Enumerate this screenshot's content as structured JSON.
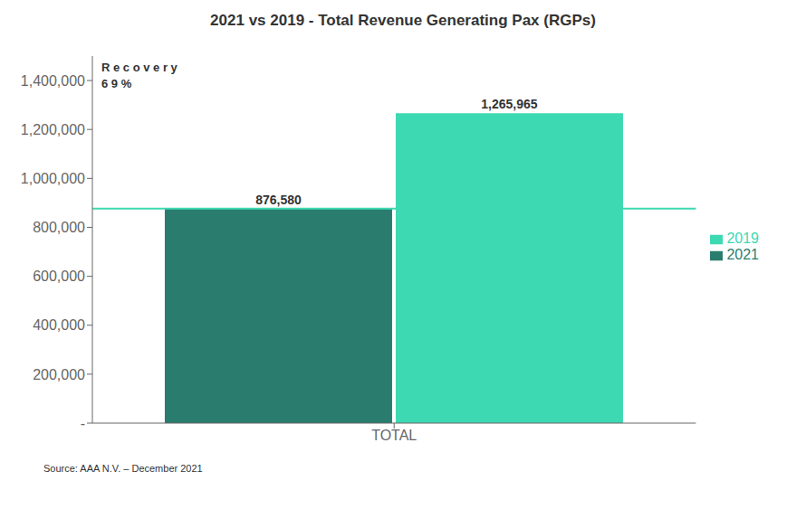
{
  "chart_data": {
    "type": "bar",
    "title": "2021 vs 2019 - Total Revenue Generating Pax (RGPs)",
    "categories": [
      "TOTAL"
    ],
    "series": [
      {
        "name": "2021",
        "color": "#2a7d6e",
        "values": [
          876580
        ],
        "value_labels": [
          "876,580"
        ]
      },
      {
        "name": "2019",
        "color": "#3dd9b3",
        "values": [
          1265965
        ],
        "value_labels": [
          "1,265,965"
        ]
      }
    ],
    "ylim": [
      0,
      1500000
    ],
    "yticks": [
      {
        "value": 0,
        "label": "-"
      },
      {
        "value": 200000,
        "label": "200,000"
      },
      {
        "value": 400000,
        "label": "400,000"
      },
      {
        "value": 600000,
        "label": "600,000"
      },
      {
        "value": 800000,
        "label": "800,000"
      },
      {
        "value": 1000000,
        "label": "1,000,000"
      },
      {
        "value": 1200000,
        "label": "1,200,000"
      },
      {
        "value": 1400000,
        "label": "1,400,000"
      }
    ],
    "reference_line": {
      "y": 876580,
      "color": "#3dd9b3"
    },
    "annotations": [
      "R e c o v e r y",
      "6 9 %"
    ],
    "source": "Source: AAA N.V. – December 2021",
    "data_labels": true,
    "grid": false,
    "legend": "right"
  }
}
